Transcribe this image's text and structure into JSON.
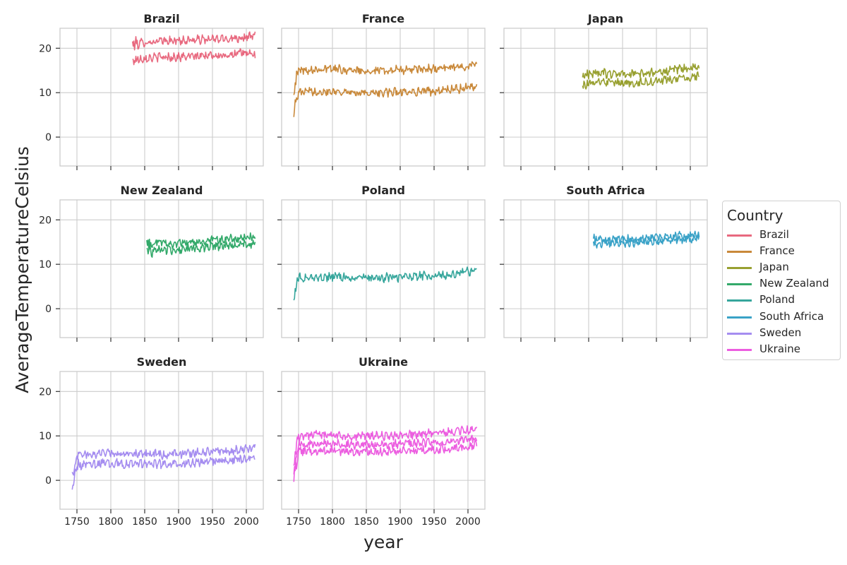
{
  "chart_data": {
    "type": "line",
    "figure_ylabel": "AverageTemperatureCelsius",
    "figure_xlabel": "year",
    "xlim": [
      1725,
      2025
    ],
    "ylim": [
      -6.5,
      24.5
    ],
    "x_ticks": [
      1750,
      1800,
      1850,
      1900,
      1950,
      2000
    ],
    "y_ticks": [
      0,
      10,
      20
    ],
    "grid": true,
    "legend": {
      "title": "Country",
      "position": "right",
      "entries": [
        "Brazil",
        "France",
        "Japan",
        "New Zealand",
        "Poland",
        "South Africa",
        "Sweden",
        "Ukraine"
      ]
    },
    "panels": [
      {
        "title": "Brazil",
        "color": "#e8697f",
        "start": 1832,
        "end": 2013,
        "series": [
          {
            "x": [
              1832,
              1850,
              1875,
              1900,
              1925,
              1950,
              1975,
              2000,
              2013
            ],
            "y": [
              21.0,
              21.3,
              21.6,
              21.7,
              21.9,
              22.0,
              22.2,
              22.5,
              22.7
            ]
          },
          {
            "x": [
              1832,
              1850,
              1875,
              1900,
              1925,
              1950,
              1975,
              2000,
              2013
            ],
            "y": [
              17.3,
              17.8,
              18.0,
              18.0,
              18.2,
              18.4,
              18.6,
              19.0,
              18.5
            ]
          }
        ]
      },
      {
        "title": "France",
        "color": "#c9893a",
        "start": 1743,
        "end": 2013,
        "series": [
          {
            "x": [
              1743,
              1750,
              1775,
              1800,
              1825,
              1850,
              1875,
              1900,
              1925,
              1950,
              1975,
              2000,
              2013
            ],
            "y": [
              11.0,
              15.0,
              15.3,
              15.4,
              15.1,
              15.0,
              15.0,
              15.1,
              15.2,
              15.4,
              15.6,
              16.2,
              16.2
            ]
          },
          {
            "x": [
              1743,
              1750,
              1775,
              1800,
              1825,
              1850,
              1875,
              1900,
              1925,
              1950,
              1975,
              2000,
              2013
            ],
            "y": [
              6.0,
              10.0,
              10.3,
              10.4,
              10.1,
              10.0,
              10.0,
              10.2,
              10.3,
              10.4,
              10.6,
              11.3,
              11.2
            ]
          }
        ]
      },
      {
        "title": "Japan",
        "color": "#98a030",
        "start": 1841,
        "end": 2013,
        "series": [
          {
            "x": [
              1841,
              1860,
              1880,
              1900,
              1925,
              1950,
              1975,
              2000,
              2013
            ],
            "y": [
              14.0,
              14.5,
              14.3,
              14.2,
              14.3,
              14.6,
              15.0,
              15.6,
              15.7
            ]
          },
          {
            "x": [
              1841,
              1860,
              1880,
              1900,
              1925,
              1950,
              1975,
              2000,
              2013
            ],
            "y": [
              12.0,
              12.2,
              12.3,
              12.1,
              12.3,
              12.6,
              13.0,
              13.4,
              13.6
            ]
          }
        ]
      },
      {
        "title": "New Zealand",
        "color": "#33a96a",
        "start": 1853,
        "end": 2013,
        "series": [
          {
            "x": [
              1853,
              1870,
              1890,
              1910,
              1930,
              1950,
              1970,
              1990,
              2013
            ],
            "y": [
              14.5,
              15.0,
              14.6,
              14.8,
              15.0,
              15.3,
              15.6,
              15.8,
              16.1
            ]
          },
          {
            "x": [
              1853,
              1870,
              1890,
              1910,
              1930,
              1950,
              1970,
              1990,
              2013
            ],
            "y": [
              13.0,
              13.4,
              13.2,
              13.4,
              13.6,
              13.9,
              14.2,
              14.4,
              14.6
            ]
          }
        ]
      },
      {
        "title": "Poland",
        "color": "#36a69c",
        "start": 1743,
        "end": 2013,
        "series": [
          {
            "x": [
              1743,
              1750,
              1775,
              1800,
              1825,
              1850,
              1875,
              1900,
              1925,
              1950,
              1975,
              2000,
              2013
            ],
            "y": [
              3.0,
              7.0,
              7.0,
              7.2,
              6.9,
              7.0,
              7.0,
              7.1,
              7.3,
              7.5,
              7.7,
              8.3,
              8.6
            ]
          }
        ]
      },
      {
        "title": "South Africa",
        "color": "#3aa2c7",
        "start": 1857,
        "end": 2013,
        "series": [
          {
            "x": [
              1857,
              1875,
              1900,
              1925,
              1950,
              1975,
              2000,
              2013
            ],
            "y": [
              15.6,
              15.5,
              15.6,
              15.8,
              16.0,
              16.2,
              16.6,
              16.6
            ]
          },
          {
            "x": [
              1857,
              1875,
              1900,
              1925,
              1950,
              1975,
              2000,
              2013
            ],
            "y": [
              14.6,
              14.7,
              14.8,
              15.0,
              15.2,
              15.4,
              15.7,
              15.7
            ]
          }
        ]
      },
      {
        "title": "Sweden",
        "color": "#a58df0",
        "start": 1743,
        "end": 2013,
        "series": [
          {
            "x": [
              1743,
              1750,
              1775,
              1800,
              1825,
              1850,
              1875,
              1900,
              1925,
              1950,
              1975,
              2000,
              2013
            ],
            "y": [
              1.0,
              5.5,
              6.0,
              6.2,
              5.8,
              6.0,
              5.8,
              6.0,
              6.2,
              6.5,
              6.6,
              7.0,
              7.2
            ]
          },
          {
            "x": [
              1743,
              1750,
              1775,
              1800,
              1825,
              1850,
              1875,
              1900,
              1925,
              1950,
              1975,
              2000,
              2013
            ],
            "y": [
              -3.0,
              3.3,
              3.8,
              4.0,
              3.6,
              3.8,
              3.6,
              3.8,
              4.0,
              4.3,
              4.4,
              4.8,
              5.0
            ]
          }
        ]
      },
      {
        "title": "Ukraine",
        "color": "#ec5de0",
        "start": 1743,
        "end": 2013,
        "series": [
          {
            "x": [
              1743,
              1750,
              1775,
              1800,
              1825,
              1850,
              1875,
              1900,
              1925,
              1950,
              1975,
              2000,
              2013
            ],
            "y": [
              4.0,
              10.0,
              10.3,
              10.2,
              9.8,
              10.0,
              10.0,
              10.2,
              10.3,
              10.6,
              10.8,
              11.3,
              11.6
            ]
          },
          {
            "x": [
              1743,
              1750,
              1775,
              1800,
              1825,
              1850,
              1875,
              1900,
              1925,
              1950,
              1975,
              2000,
              2013
            ],
            "y": [
              2.0,
              7.8,
              8.2,
              8.3,
              8.0,
              8.1,
              8.0,
              8.2,
              8.4,
              8.6,
              8.8,
              9.3,
              9.6
            ]
          },
          {
            "x": [
              1743,
              1750,
              1775,
              1800,
              1825,
              1850,
              1875,
              1900,
              1925,
              1950,
              1975,
              2000,
              2013
            ],
            "y": [
              0.0,
              6.5,
              6.6,
              6.8,
              6.4,
              6.5,
              6.4,
              6.6,
              6.7,
              7.0,
              7.2,
              7.6,
              8.0
            ]
          }
        ]
      }
    ]
  }
}
